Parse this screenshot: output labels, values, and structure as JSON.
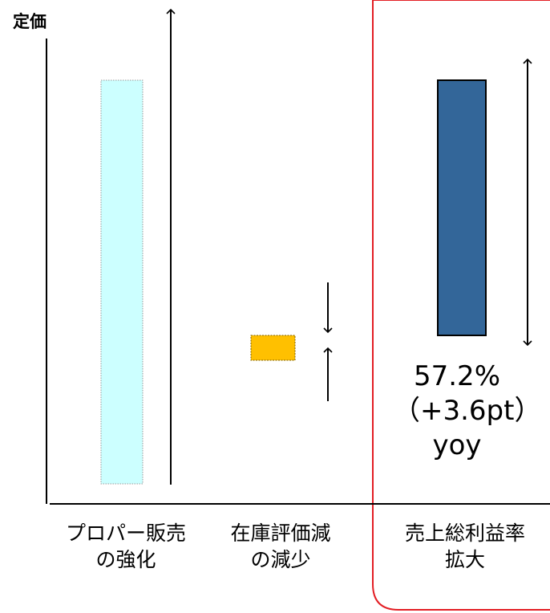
{
  "diagram": {
    "y_axis_label": "定価",
    "categories": [
      {
        "name": "proper-sales",
        "label": "プロパー販売\nの強化"
      },
      {
        "name": "inventory-writedown",
        "label": "在庫評価減\nの減少"
      },
      {
        "name": "gross-margin",
        "label": "売上総利益率\n拡大"
      }
    ],
    "result": {
      "value_text": "57.2%\n（+3.6pt）\nyoy"
    },
    "colors": {
      "proper_sales_bar_fill": "#ccffff",
      "proper_sales_bar_border": "#999999",
      "inventory_bar_fill": "#ffc000",
      "inventory_bar_border": "#7f6000",
      "gross_margin_bar_fill": "#336699",
      "gross_margin_bar_border": "#000000",
      "highlight_border": "#e31e24"
    }
  }
}
